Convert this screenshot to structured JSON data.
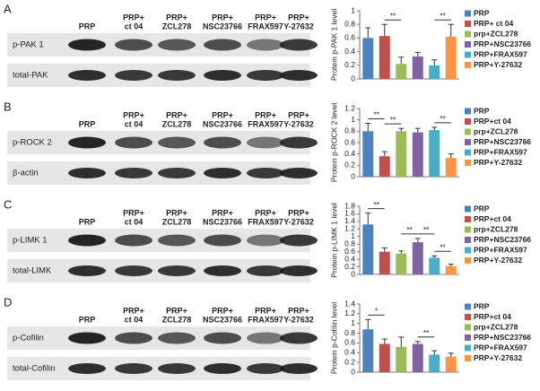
{
  "blots": [
    {
      "letter": "A",
      "lanes": [
        [
          "PRP"
        ],
        [
          "PRP+",
          "ct 04"
        ],
        [
          "PRP+",
          "ZCL278"
        ],
        [
          "PRP+",
          "NSC23766"
        ],
        [
          "PRP+",
          "FRAX597"
        ],
        [
          "PRP+",
          "Y-27632"
        ]
      ],
      "rows": [
        "p-PAK 1",
        "total-PAK"
      ]
    },
    {
      "letter": "B",
      "lanes": [
        [
          "PRP"
        ],
        [
          "PRP+",
          "ct 04"
        ],
        [
          "PRP+",
          "ZCL278"
        ],
        [
          "PRP+",
          "NSC23766"
        ],
        [
          "PRP+",
          "FRAX597"
        ],
        [
          "PRP+",
          "Y-27632"
        ]
      ],
      "rows": [
        "p-ROCK 2",
        "β-actin"
      ]
    },
    {
      "letter": "C",
      "lanes": [
        [
          "PRP"
        ],
        [
          "PRP+",
          "ct 04"
        ],
        [
          "PRP+",
          "ZCL278"
        ],
        [
          "PRP+",
          "NSC23766"
        ],
        [
          "PRP+",
          "FRAX597"
        ],
        [
          "PRP+",
          "Y-27632"
        ]
      ],
      "rows": [
        "p-LIMK 1",
        "total-LIMK"
      ]
    },
    {
      "letter": "D",
      "lanes": [
        [
          "PRP"
        ],
        [
          "PRP+",
          "ct 04"
        ],
        [
          "PRP+",
          "ZCL278"
        ],
        [
          "PRP+",
          "NSC23766"
        ],
        [
          "PRP+",
          "FRAX597"
        ],
        [
          "PRP+",
          "Y-27632"
        ]
      ],
      "rows": [
        "p-Cofilin",
        "total-Cofilin"
      ]
    }
  ],
  "chart_data": [
    {
      "type": "bar",
      "y_label": "Protein p-PAK 1 level",
      "ylim": [
        0,
        1
      ],
      "yticks": [
        0,
        0.2,
        0.4,
        0.6,
        0.8,
        1
      ],
      "series": [
        {
          "name": "PRP",
          "color": "#4f81bd",
          "values": [
            0.6
          ],
          "errors": [
            0.15
          ]
        },
        {
          "name": "PRP+ ct 04",
          "color": "#c0504d",
          "values": [
            0.63
          ],
          "errors": [
            0.17
          ]
        },
        {
          "name": "prp+ZCL278",
          "color": "#9bbb59",
          "values": [
            0.22
          ],
          "errors": [
            0.1
          ]
        },
        {
          "name": "PRP+NSC23766",
          "color": "#8064a2",
          "values": [
            0.33
          ],
          "errors": [
            0.06
          ]
        },
        {
          "name": "PRP+FRAX597",
          "color": "#4bacc6",
          "values": [
            0.2
          ],
          "errors": [
            0.08
          ]
        },
        {
          "name": "PRP+Y-27632",
          "color": "#f79646",
          "values": [
            0.62
          ],
          "errors": [
            0.18
          ]
        }
      ],
      "annotations": [
        {
          "text": "**",
          "between": [
            1,
            2
          ]
        },
        {
          "text": "**",
          "between": [
            4,
            5
          ]
        }
      ]
    },
    {
      "type": "bar",
      "y_label": "Protein p-ROCK 2 level",
      "ylim": [
        0,
        1.2
      ],
      "yticks": [
        0,
        0.2,
        0.4,
        0.6,
        0.8,
        1,
        1.2
      ],
      "series": [
        {
          "name": "PRP",
          "color": "#4f81bd",
          "values": [
            0.8
          ],
          "errors": [
            0.14
          ]
        },
        {
          "name": "PRP+ct 04",
          "color": "#c0504d",
          "values": [
            0.36
          ],
          "errors": [
            0.08
          ]
        },
        {
          "name": "prp+ZCL278",
          "color": "#9bbb59",
          "values": [
            0.8
          ],
          "errors": [
            0.05
          ]
        },
        {
          "name": "PRP+NSC23766",
          "color": "#8064a2",
          "values": [
            0.78
          ],
          "errors": [
            0.07
          ]
        },
        {
          "name": "PRP+FRAX597",
          "color": "#4bacc6",
          "values": [
            0.82
          ],
          "errors": [
            0.05
          ]
        },
        {
          "name": "PRP+Y-27632",
          "color": "#f79646",
          "values": [
            0.33
          ],
          "errors": [
            0.07
          ]
        }
      ],
      "annotations": [
        {
          "text": "**",
          "between": [
            0,
            1
          ]
        },
        {
          "text": "**",
          "between": [
            1,
            2
          ]
        },
        {
          "text": "**",
          "between": [
            4,
            5
          ]
        }
      ]
    },
    {
      "type": "bar",
      "y_label": "Protein p-LIMK 1 level",
      "ylim": [
        0,
        1.8
      ],
      "yticks": [
        0,
        0.2,
        0.4,
        0.6,
        0.8,
        1,
        1.2,
        1.4,
        1.6,
        1.8
      ],
      "series": [
        {
          "name": "PRP",
          "color": "#4f81bd",
          "values": [
            1.32
          ],
          "errors": [
            0.3
          ]
        },
        {
          "name": "PRP+ct 04",
          "color": "#c0504d",
          "values": [
            0.6
          ],
          "errors": [
            0.1
          ]
        },
        {
          "name": "prp+ZCL278",
          "color": "#9bbb59",
          "values": [
            0.55
          ],
          "errors": [
            0.07
          ]
        },
        {
          "name": "PRP+NSC23766",
          "color": "#8064a2",
          "values": [
            0.85
          ],
          "errors": [
            0.1
          ]
        },
        {
          "name": "PRP+FRAX597",
          "color": "#4bacc6",
          "values": [
            0.44
          ],
          "errors": [
            0.05
          ]
        },
        {
          "name": "PRP+Y-27632",
          "color": "#f79646",
          "values": [
            0.22
          ],
          "errors": [
            0.05
          ]
        }
      ],
      "annotations": [
        {
          "text": "**",
          "between": [
            0,
            1
          ]
        },
        {
          "text": "**",
          "between": [
            2,
            3
          ]
        },
        {
          "text": "**",
          "between": [
            3,
            4
          ]
        },
        {
          "text": "**",
          "between": [
            4,
            5
          ]
        }
      ]
    },
    {
      "type": "bar",
      "y_label": "Protein p-Cofilin level",
      "ylim": [
        0,
        1.4
      ],
      "yticks": [
        0,
        0.2,
        0.4,
        0.6,
        0.8,
        1,
        1.2,
        1.4
      ],
      "series": [
        {
          "name": "PRP",
          "color": "#4f81bd",
          "values": [
            0.88
          ],
          "errors": [
            0.2
          ]
        },
        {
          "name": "PRP+ct 04",
          "color": "#c0504d",
          "values": [
            0.58
          ],
          "errors": [
            0.1
          ]
        },
        {
          "name": "prp+ZCL278",
          "color": "#9bbb59",
          "values": [
            0.52
          ],
          "errors": [
            0.2
          ]
        },
        {
          "name": "PRP+NSC23766",
          "color": "#8064a2",
          "values": [
            0.58
          ],
          "errors": [
            0.05
          ]
        },
        {
          "name": "PRP+FRAX597",
          "color": "#4bacc6",
          "values": [
            0.36
          ],
          "errors": [
            0.08
          ]
        },
        {
          "name": "PRP+Y-27632",
          "color": "#f79646",
          "values": [
            0.32
          ],
          "errors": [
            0.07
          ]
        }
      ],
      "annotations": [
        {
          "text": "*",
          "between": [
            0,
            1
          ]
        },
        {
          "text": "**",
          "between": [
            3,
            4
          ]
        }
      ]
    }
  ]
}
